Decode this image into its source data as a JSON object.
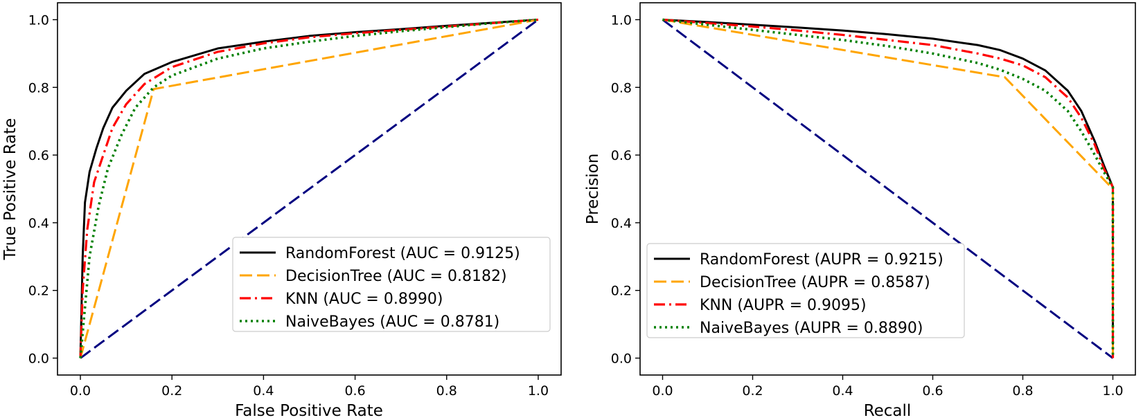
{
  "chart_data": [
    {
      "type": "line",
      "title": "",
      "xlabel": "False Positive Rate",
      "ylabel": "True Positive Rate",
      "xlim": [
        -0.05,
        1.05
      ],
      "ylim": [
        -0.05,
        1.05
      ],
      "xticks": [
        "0.0",
        "0.2",
        "0.4",
        "0.6",
        "0.8",
        "1.0"
      ],
      "yticks": [
        "0.0",
        "0.2",
        "0.4",
        "0.6",
        "0.8",
        "1.0"
      ],
      "legend_position": "lower-right",
      "baseline": {
        "name": "chance",
        "color": "#000080",
        "dash": "dashed",
        "x": [
          0,
          1
        ],
        "y": [
          0,
          1
        ]
      },
      "series": [
        {
          "name": "RandomForest",
          "label": "RandomForest (AUC = 0.9125)",
          "color": "#000000",
          "dash": "solid",
          "x": [
            0,
            0.005,
            0.01,
            0.02,
            0.035,
            0.05,
            0.07,
            0.1,
            0.14,
            0.2,
            0.3,
            0.4,
            0.5,
            0.6,
            0.7,
            0.8,
            0.9,
            1.0
          ],
          "y": [
            0,
            0.3,
            0.46,
            0.55,
            0.62,
            0.68,
            0.74,
            0.79,
            0.84,
            0.875,
            0.915,
            0.935,
            0.952,
            0.963,
            0.972,
            0.982,
            0.991,
            1.0
          ]
        },
        {
          "name": "DecisionTree",
          "label": "DecisionTree (AUC = 0.8182)",
          "color": "#FFA500",
          "dash": "dashed",
          "x": [
            0,
            0.16,
            1.0
          ],
          "y": [
            0,
            0.795,
            1.0
          ]
        },
        {
          "name": "KNN",
          "label": "KNN (AUC = 0.8990)",
          "color": "#FF0000",
          "dash": "dashdot",
          "x": [
            0,
            0.005,
            0.015,
            0.03,
            0.05,
            0.07,
            0.1,
            0.14,
            0.2,
            0.3,
            0.4,
            0.5,
            0.6,
            0.7,
            0.8,
            0.9,
            1.0
          ],
          "y": [
            0,
            0.2,
            0.38,
            0.52,
            0.6,
            0.68,
            0.75,
            0.81,
            0.86,
            0.905,
            0.93,
            0.948,
            0.96,
            0.97,
            0.98,
            0.99,
            1.0
          ]
        },
        {
          "name": "NaiveBayes",
          "label": "NaiveBayes (AUC = 0.8781)",
          "color": "#008000",
          "dash": "dotted",
          "x": [
            0,
            0.01,
            0.02,
            0.04,
            0.06,
            0.09,
            0.12,
            0.16,
            0.2,
            0.3,
            0.4,
            0.5,
            0.6,
            0.7,
            0.8,
            0.9,
            1.0
          ],
          "y": [
            0,
            0.15,
            0.3,
            0.45,
            0.56,
            0.66,
            0.74,
            0.8,
            0.835,
            0.885,
            0.915,
            0.935,
            0.952,
            0.966,
            0.978,
            0.99,
            1.0
          ]
        }
      ]
    },
    {
      "type": "line",
      "title": "",
      "xlabel": "Recall",
      "ylabel": "Precision",
      "xlim": [
        -0.05,
        1.05
      ],
      "ylim": [
        -0.05,
        1.05
      ],
      "xticks": [
        "0.0",
        "0.2",
        "0.4",
        "0.6",
        "0.8",
        "1.0"
      ],
      "yticks": [
        "0.0",
        "0.2",
        "0.4",
        "0.6",
        "0.8",
        "1.0"
      ],
      "legend_position": "lower-left",
      "baseline": {
        "name": "chance",
        "color": "#000080",
        "dash": "dashed",
        "x": [
          0,
          1
        ],
        "y": [
          1,
          0
        ]
      },
      "series": [
        {
          "name": "RandomForest",
          "label": "RandomForest (AUPR = 0.9215)",
          "color": "#000000",
          "dash": "solid",
          "x": [
            0,
            0.1,
            0.2,
            0.3,
            0.4,
            0.5,
            0.6,
            0.7,
            0.75,
            0.8,
            0.85,
            0.9,
            0.93,
            0.96,
            0.98,
            1.0,
            1.0
          ],
          "y": [
            1.0,
            0.993,
            0.985,
            0.977,
            0.968,
            0.957,
            0.944,
            0.925,
            0.91,
            0.885,
            0.85,
            0.79,
            0.73,
            0.64,
            0.57,
            0.505,
            0.0
          ]
        },
        {
          "name": "DecisionTree",
          "label": "DecisionTree (AUPR = 0.8587)",
          "color": "#FFA500",
          "dash": "dashed",
          "x": [
            0,
            0.76,
            1.0,
            1.0
          ],
          "y": [
            1.0,
            0.83,
            0.5,
            0.0
          ]
        },
        {
          "name": "KNN",
          "label": "KNN (AUPR = 0.9095)",
          "color": "#FF0000",
          "dash": "dashdot",
          "x": [
            0,
            0.1,
            0.2,
            0.3,
            0.4,
            0.5,
            0.6,
            0.7,
            0.75,
            0.8,
            0.85,
            0.9,
            0.93,
            0.96,
            0.98,
            1.0,
            1.0
          ],
          "y": [
            1.0,
            0.99,
            0.98,
            0.968,
            0.955,
            0.94,
            0.925,
            0.9,
            0.885,
            0.865,
            0.83,
            0.77,
            0.71,
            0.63,
            0.56,
            0.505,
            0.0
          ]
        },
        {
          "name": "NaiveBayes",
          "label": "NaiveBayes (AUPR = 0.8890)",
          "color": "#008000",
          "dash": "dotted",
          "x": [
            0,
            0.1,
            0.2,
            0.3,
            0.4,
            0.5,
            0.6,
            0.7,
            0.75,
            0.8,
            0.85,
            0.9,
            0.93,
            0.96,
            0.98,
            1.0,
            1.0
          ],
          "y": [
            1.0,
            0.985,
            0.97,
            0.955,
            0.94,
            0.922,
            0.9,
            0.872,
            0.852,
            0.825,
            0.79,
            0.73,
            0.67,
            0.6,
            0.55,
            0.505,
            0.0
          ]
        }
      ]
    }
  ]
}
